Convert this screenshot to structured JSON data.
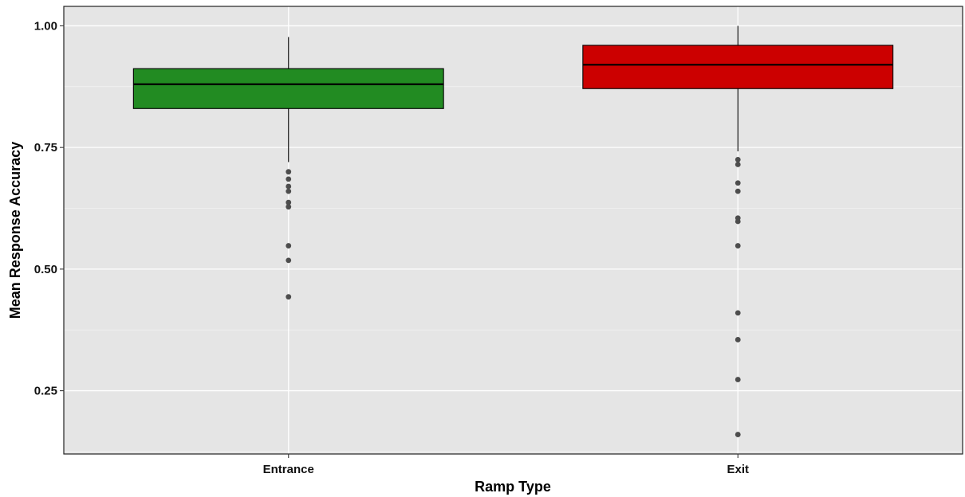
{
  "chart_data": {
    "type": "boxplot",
    "title": "",
    "xlabel": "Ramp Type",
    "ylabel": "Mean Response Accuracy",
    "categories": [
      "Entrance",
      "Exit"
    ],
    "ylim": [
      0.12,
      1.04
    ],
    "yticks": [
      0.25,
      0.5,
      0.75,
      1.0
    ],
    "ytick_labels": [
      "0.25",
      "0.50",
      "0.75",
      "1.00"
    ],
    "grid": true,
    "legend": "none",
    "boxes": [
      {
        "category": "Entrance",
        "color": "#228B22",
        "whisker_low": 0.72,
        "q1": 0.83,
        "median": 0.88,
        "q3": 0.912,
        "whisker_high": 0.977,
        "outliers": [
          0.7,
          0.685,
          0.67,
          0.66,
          0.637,
          0.628,
          0.548,
          0.518,
          0.443
        ]
      },
      {
        "category": "Exit",
        "color": "#CC0000",
        "whisker_low": 0.742,
        "q1": 0.871,
        "median": 0.92,
        "q3": 0.96,
        "whisker_high": 1.0,
        "outliers": [
          0.725,
          0.715,
          0.677,
          0.66,
          0.605,
          0.598,
          0.548,
          0.41,
          0.355,
          0.273,
          0.16
        ]
      }
    ]
  },
  "colors": {
    "panel_background": "#E5E5E5",
    "grid_major": "#FFFFFF",
    "outlier": "#4D4D4D",
    "box_outline": "#000000"
  }
}
